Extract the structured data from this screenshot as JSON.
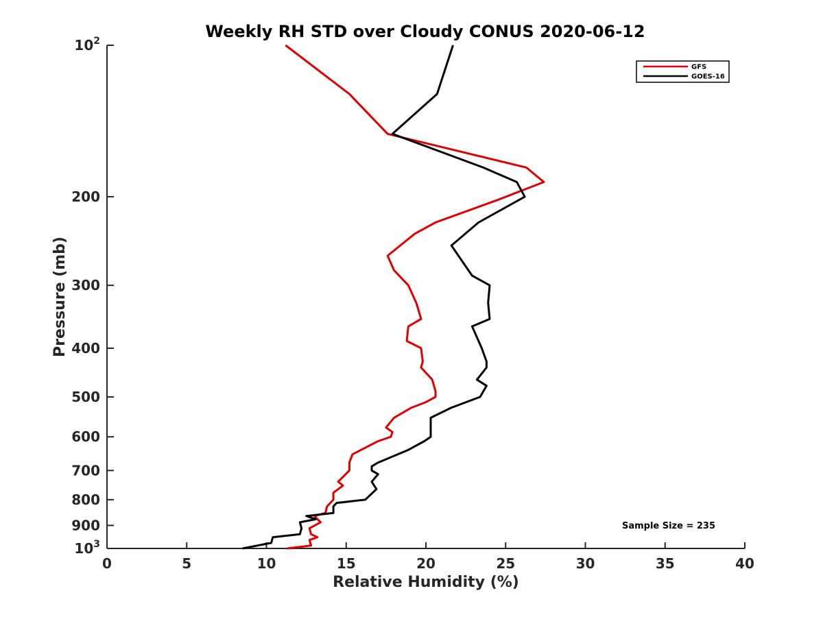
{
  "chart_data": {
    "type": "line",
    "title": "Weekly RH STD over Cloudy CONUS 2020-06-12",
    "xlabel": "Relative Humidity (%)",
    "ylabel": "Pressure (mb)",
    "xlim": [
      0,
      40
    ],
    "ylim": [
      100,
      1000
    ],
    "y_scale": "log",
    "y_reversed": true,
    "grid": false,
    "legend_position": "top-right",
    "x_ticks": [
      "0",
      "5",
      "10",
      "15",
      "20",
      "25",
      "30",
      "35",
      "40"
    ],
    "y_ticks": [
      {
        "value": 100,
        "base": "10",
        "exp": "2"
      },
      {
        "value": 200,
        "label": "200"
      },
      {
        "value": 300,
        "label": "300"
      },
      {
        "value": 400,
        "label": "400"
      },
      {
        "value": 500,
        "label": "500"
      },
      {
        "value": 600,
        "label": "600"
      },
      {
        "value": 700,
        "label": "700"
      },
      {
        "value": 800,
        "label": "800"
      },
      {
        "value": 900,
        "label": "900"
      },
      {
        "value": 1000,
        "base": "10",
        "exp": "3"
      }
    ],
    "annotation": "Sample Size = 235",
    "series": [
      {
        "name": "GFS",
        "color": "#e00000",
        "points": [
          [
            11.2,
            100
          ],
          [
            15.2,
            125
          ],
          [
            17.6,
            150
          ],
          [
            26.3,
            175
          ],
          [
            27.4,
            187
          ],
          [
            24.5,
            203
          ],
          [
            20.6,
            225
          ],
          [
            19.3,
            237
          ],
          [
            17.6,
            262
          ],
          [
            18.0,
            280
          ],
          [
            18.9,
            300
          ],
          [
            19.4,
            325
          ],
          [
            19.7,
            350
          ],
          [
            18.9,
            362
          ],
          [
            18.8,
            387
          ],
          [
            19.7,
            400
          ],
          [
            19.8,
            425
          ],
          [
            19.7,
            437
          ],
          [
            20.4,
            462
          ],
          [
            20.6,
            487
          ],
          [
            20.6,
            500
          ],
          [
            20.0,
            512
          ],
          [
            19.1,
            525
          ],
          [
            18.0,
            550
          ],
          [
            17.5,
            575
          ],
          [
            17.9,
            587
          ],
          [
            17.8,
            600
          ],
          [
            17.0,
            612
          ],
          [
            15.4,
            650
          ],
          [
            15.2,
            675
          ],
          [
            15.2,
            700
          ],
          [
            14.5,
            737
          ],
          [
            14.8,
            750
          ],
          [
            14.2,
            775
          ],
          [
            14.2,
            800
          ],
          [
            13.8,
            825
          ],
          [
            13.7,
            850
          ],
          [
            13.0,
            862
          ],
          [
            13.4,
            887
          ],
          [
            12.7,
            912
          ],
          [
            12.8,
            937
          ],
          [
            13.2,
            950
          ],
          [
            12.7,
            962
          ],
          [
            12.8,
            987
          ],
          [
            11.3,
            1000
          ]
        ]
      },
      {
        "name": "GOES-16",
        "color": "#000000",
        "points": [
          [
            21.7,
            100
          ],
          [
            20.7,
            125
          ],
          [
            17.9,
            150
          ],
          [
            23.6,
            175
          ],
          [
            25.7,
            187
          ],
          [
            26.2,
            200
          ],
          [
            23.3,
            225
          ],
          [
            21.6,
            250
          ],
          [
            22.9,
            287
          ],
          [
            24.0,
            300
          ],
          [
            23.9,
            325
          ],
          [
            24.0,
            350
          ],
          [
            22.9,
            362
          ],
          [
            23.5,
            400
          ],
          [
            23.8,
            425
          ],
          [
            23.8,
            437
          ],
          [
            23.2,
            462
          ],
          [
            23.8,
            475
          ],
          [
            23.4,
            500
          ],
          [
            21.6,
            525
          ],
          [
            20.3,
            550
          ],
          [
            20.3,
            600
          ],
          [
            19.9,
            612
          ],
          [
            18.9,
            637
          ],
          [
            17.0,
            675
          ],
          [
            16.6,
            687
          ],
          [
            16.6,
            700
          ],
          [
            17.0,
            712
          ],
          [
            16.6,
            737
          ],
          [
            16.9,
            762
          ],
          [
            16.2,
            800
          ],
          [
            14.4,
            812
          ],
          [
            14.2,
            825
          ],
          [
            14.2,
            850
          ],
          [
            12.5,
            862
          ],
          [
            13.1,
            875
          ],
          [
            12.1,
            887
          ],
          [
            12.2,
            912
          ],
          [
            12.1,
            937
          ],
          [
            10.4,
            950
          ],
          [
            10.3,
            975
          ],
          [
            8.5,
            1000
          ]
        ]
      }
    ]
  }
}
